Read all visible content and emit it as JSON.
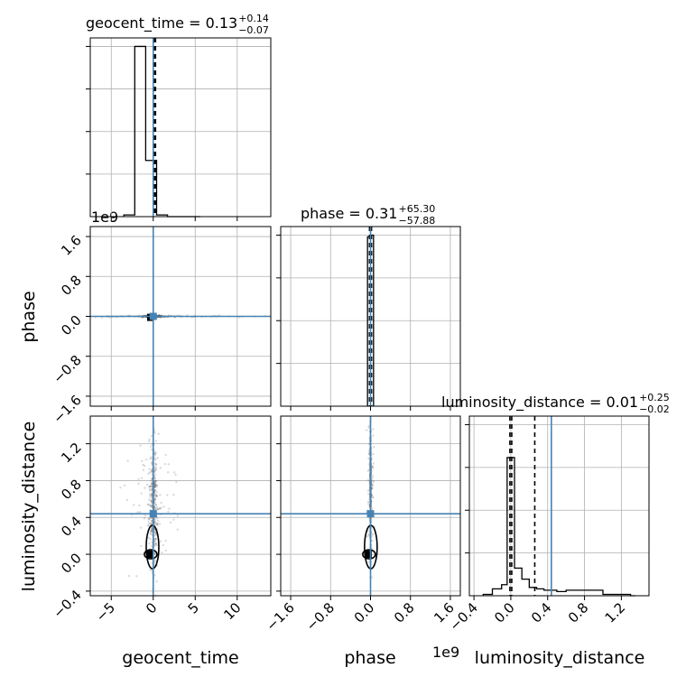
{
  "colors": {
    "truth": "#4682b4",
    "hist": "#000000",
    "grid": "#b0b0b0",
    "scatter": "#555555"
  },
  "offset_labels": {
    "phase": "1e9",
    "luminosity_distance": "1e9"
  },
  "chart_data": [
    {
      "type": "bar",
      "panel": "geocent_time-hist",
      "title": "geocent_time = 0.13^{+0.14}_{-0.07}",
      "title_parts": {
        "prefix": "geocent_time = 0.13",
        "sup": "+0.14",
        "sub": "−0.07"
      },
      "xlim": [
        -7.5,
        14
      ],
      "xticks": [
        -5,
        0,
        5,
        10
      ],
      "yticks_shown_without_labels": true,
      "bin_edges": [
        -3.5,
        -2.2,
        -0.9,
        0.4,
        1.7,
        3.0,
        4.3,
        5.6
      ],
      "counts": [
        0.01,
        1.0,
        0.33,
        0.01,
        0.0,
        0.0,
        0.0
      ],
      "ylim": [
        0,
        1.05
      ],
      "quantiles": [
        0.06,
        0.13,
        0.27
      ],
      "truth": 0.0
    },
    {
      "type": "bar",
      "panel": "phase-hist",
      "title": "phase = 0.31^{+65.30}_{-57.88}",
      "title_parts": {
        "prefix": "phase = 0.31",
        "sup": "+65.30",
        "sub": "−57.88"
      },
      "xlim": [
        -1.8,
        1.8
      ],
      "xticks": [
        -1.6,
        -0.8,
        0.0,
        0.8,
        1.6
      ],
      "yticks_shown_without_labels": true,
      "bin_edges": [
        -0.06,
        0.0,
        0.06
      ],
      "counts": [
        0.99,
        1.0
      ],
      "ylim": [
        0,
        1.05
      ],
      "quantiles": [
        -0.02,
        0.0,
        0.02
      ],
      "truth": 0.0
    },
    {
      "type": "bar",
      "panel": "luminosity_distance-hist",
      "title": "luminosity_distance = 0.01^{+0.25}_{-0.02}",
      "title_parts": {
        "prefix": "luminosity_distance = 0.01",
        "sup": "+0.25",
        "sub": "−0.02"
      },
      "xlim": [
        -0.45,
        1.5
      ],
      "xticks": [
        -0.4,
        0.0,
        0.4,
        0.8,
        1.2
      ],
      "xlabel": "luminosity_distance",
      "yticks_shown_without_labels": true,
      "bin_edges": [
        -0.3,
        -0.2,
        -0.1,
        -0.04,
        0.04,
        0.12,
        0.2,
        0.28,
        0.36,
        0.5,
        0.6,
        0.7,
        0.8,
        1.0,
        1.1,
        1.2,
        1.3,
        1.35
      ],
      "counts": [
        0.01,
        0.05,
        0.08,
        1.0,
        0.2,
        0.12,
        0.06,
        0.05,
        0.04,
        0.03,
        0.04,
        0.04,
        0.04,
        0.01,
        0.01,
        0.01,
        0.0
      ],
      "ylim": [
        0,
        1.3
      ],
      "quantiles": [
        -0.01,
        0.01,
        0.26
      ],
      "truth": 0.44
    },
    {
      "type": "scatter",
      "panel": "phase-vs-geocent_time",
      "xlim": [
        -7.5,
        14
      ],
      "ylim": [
        -1.8,
        1.8
      ],
      "xticks": [
        -5,
        0,
        5,
        10
      ],
      "yticks": [
        -1.6,
        -0.8,
        0.0,
        0.8,
        1.6
      ],
      "ylabel": "phase",
      "density_cloud": {
        "cx": 0.0,
        "cy": 0.0,
        "sx": 5.0,
        "sy": 0.01
      },
      "peak": [
        -0.3,
        -0.02
      ],
      "truth": [
        0.0,
        0.0
      ]
    },
    {
      "type": "scatter",
      "panel": "luminosity_distance-vs-geocent_time",
      "xlim": [
        -7.5,
        14
      ],
      "ylim": [
        -0.45,
        1.5
      ],
      "xticks": [
        -5,
        0,
        5,
        10
      ],
      "yticks": [
        -0.4,
        0.0,
        0.4,
        0.8,
        1.2
      ],
      "xlabel": "geocent_time",
      "ylabel": "luminosity_distance",
      "density_cloud": {
        "cx": 0.0,
        "cy": 0.55,
        "sx": 1.8,
        "sy": 0.45
      },
      "peak": [
        -0.3,
        0.0
      ],
      "truth": [
        0.0,
        0.44
      ]
    },
    {
      "type": "scatter",
      "panel": "luminosity_distance-vs-phase",
      "xlim": [
        -1.8,
        1.8
      ],
      "ylim": [
        -0.45,
        1.5
      ],
      "xticks": [
        -1.6,
        -0.8,
        0.0,
        0.8,
        1.6
      ],
      "yticks": [
        -0.4,
        0.0,
        0.4,
        0.8,
        1.2
      ],
      "xlabel": "phase",
      "density_cloud": {
        "cx": 0.0,
        "cy": 0.7,
        "sx": 0.03,
        "sy": 0.45
      },
      "peak": [
        -0.03,
        0.0
      ],
      "truth": [
        0.0,
        0.44
      ]
    }
  ]
}
